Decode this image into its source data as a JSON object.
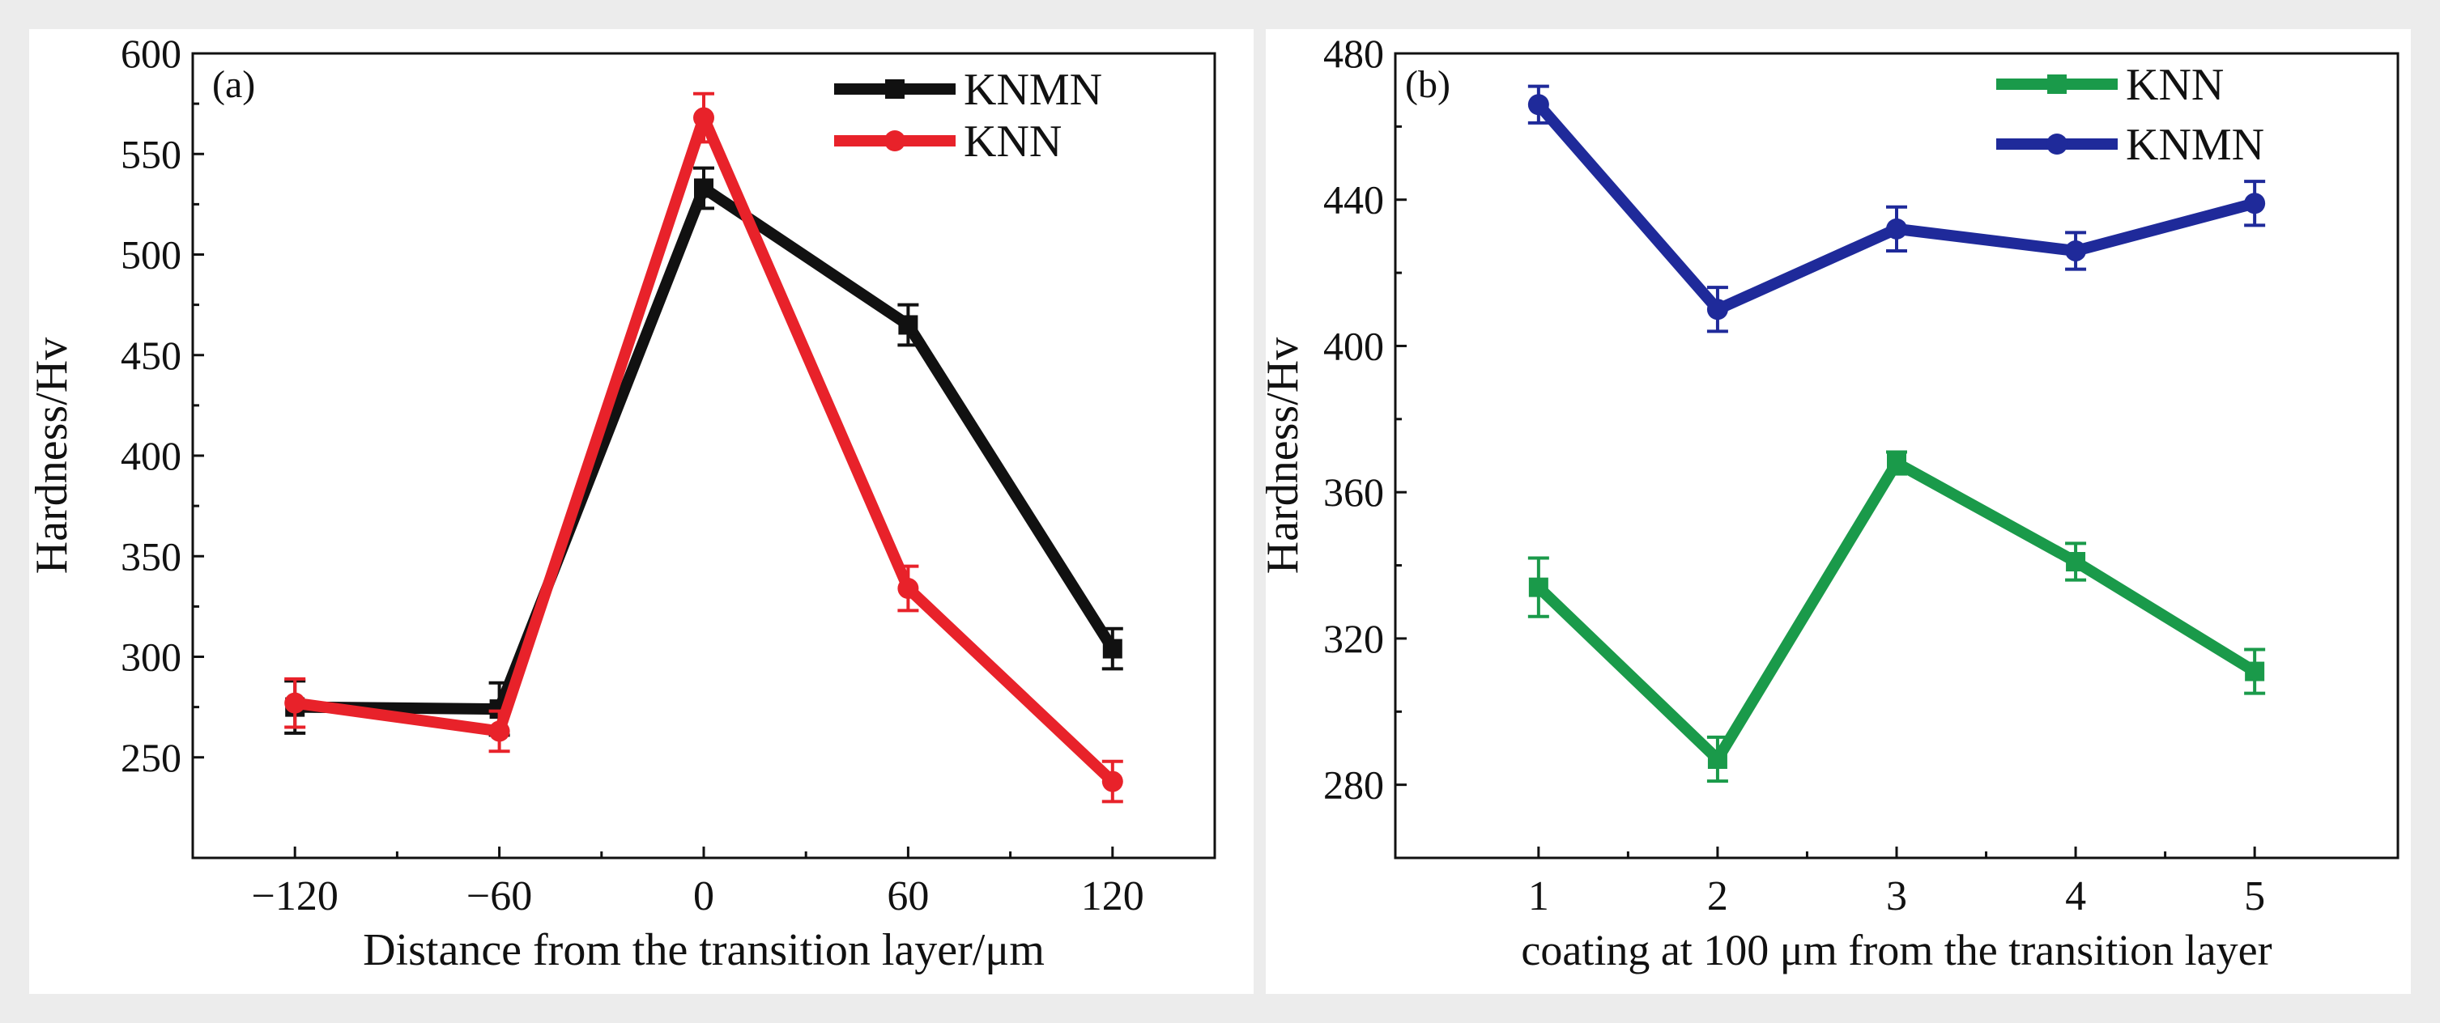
{
  "figure": {
    "background_color": "#ececec",
    "panel_color": "#ffffff"
  },
  "chart_data": [
    {
      "panel_label": "(a)",
      "type": "line",
      "xlabel": "Distance from the transition layer/μm",
      "ylabel": "Hardness/Hv",
      "x": [
        -120,
        -60,
        0,
        60,
        120
      ],
      "xlim": [
        -150,
        150
      ],
      "xticks": [
        -120,
        -60,
        0,
        60,
        120
      ],
      "xtick_labels": [
        "−120",
        "−60",
        "0",
        "60",
        "120"
      ],
      "ylim": [
        200,
        600
      ],
      "yticks": [
        250,
        300,
        350,
        400,
        450,
        500,
        550,
        600
      ],
      "grid": false,
      "legend_position": "top-right",
      "series": [
        {
          "name": "KNMN",
          "color": "#111111",
          "marker": "square",
          "values": [
            275,
            274,
            533,
            465,
            304
          ],
          "errors": [
            13,
            13,
            10,
            10,
            10
          ]
        },
        {
          "name": "KNN",
          "color": "#e8222a",
          "marker": "circle",
          "values": [
            277,
            263,
            568,
            334,
            238
          ],
          "errors": [
            12,
            10,
            12,
            11,
            10
          ]
        }
      ]
    },
    {
      "panel_label": "(b)",
      "type": "line",
      "xlabel": "coating at 100 μm from the transition layer",
      "ylabel": "Hardness/Hv",
      "x": [
        1,
        2,
        3,
        4,
        5
      ],
      "xlim": [
        0.2,
        5.8
      ],
      "xticks": [
        1,
        2,
        3,
        4,
        5
      ],
      "xtick_labels": [
        "1",
        "2",
        "3",
        "4",
        "5"
      ],
      "ylim": [
        260,
        480
      ],
      "yticks": [
        280,
        320,
        360,
        400,
        440,
        480
      ],
      "grid": false,
      "legend_position": "top-right",
      "series": [
        {
          "name": "KNN",
          "color": "#1a9a4a",
          "marker": "square",
          "values": [
            334,
            287,
            368,
            341,
            311
          ],
          "errors": [
            8,
            6,
            3,
            5,
            6
          ]
        },
        {
          "name": "KNMN",
          "color": "#1f2a9a",
          "marker": "circle",
          "values": [
            466,
            410,
            432,
            426,
            439
          ],
          "errors": [
            5,
            6,
            6,
            5,
            6
          ]
        }
      ]
    }
  ]
}
